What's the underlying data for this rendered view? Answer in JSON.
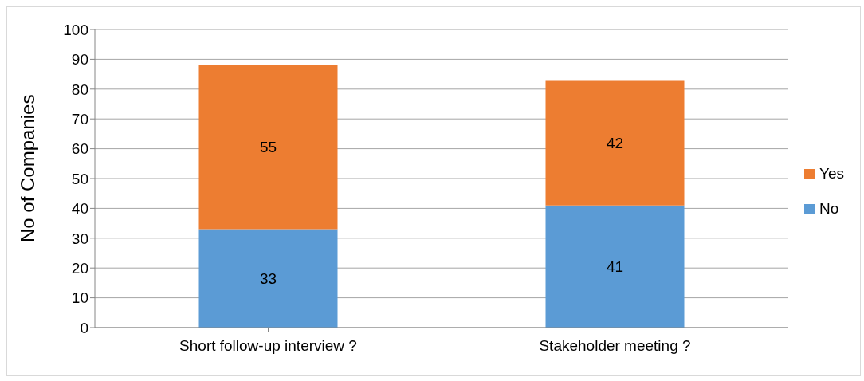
{
  "chart_data": {
    "type": "bar",
    "stacked": true,
    "ylabel": "No of Companies",
    "categories": [
      "Short follow-up interview ?",
      "Stakeholder meeting ?"
    ],
    "series": [
      {
        "name": "No",
        "color": "#5b9bd5",
        "values": [
          33,
          41
        ]
      },
      {
        "name": "Yes",
        "color": "#ed7d31",
        "values": [
          55,
          42
        ]
      }
    ],
    "ylim": [
      0,
      100
    ],
    "yticks": [
      0,
      10,
      20,
      30,
      40,
      50,
      60,
      70,
      80,
      90,
      100
    ],
    "grid": "y",
    "legend": "right",
    "data_labels": true
  }
}
